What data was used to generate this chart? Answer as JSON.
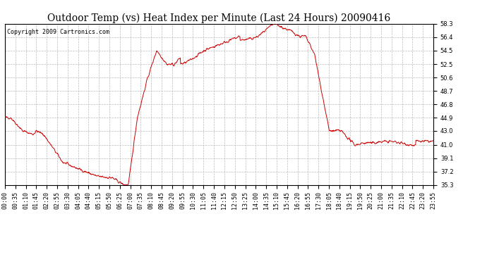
{
  "title": "Outdoor Temp (vs) Heat Index per Minute (Last 24 Hours) 20090416",
  "copyright_text": "Copyright 2009 Cartronics.com",
  "line_color": "#cc0000",
  "bg_color": "#ffffff",
  "plot_bg_color": "#ffffff",
  "grid_color": "#bbbbbb",
  "grid_style": "--",
  "yticks": [
    35.3,
    37.2,
    39.1,
    41.0,
    43.0,
    44.9,
    46.8,
    48.7,
    50.6,
    52.5,
    54.5,
    56.4,
    58.3
  ],
  "ymin": 35.3,
  "ymax": 58.3,
  "title_fontsize": 10,
  "copyright_fontsize": 6,
  "tick_fontsize": 6,
  "xtick_labels": [
    "00:00",
    "00:35",
    "01:10",
    "01:45",
    "02:20",
    "02:55",
    "03:30",
    "04:05",
    "04:40",
    "05:15",
    "05:50",
    "06:25",
    "07:00",
    "07:35",
    "08:10",
    "08:45",
    "09:20",
    "09:55",
    "10:30",
    "11:05",
    "11:40",
    "12:15",
    "12:50",
    "13:25",
    "14:00",
    "14:35",
    "15:10",
    "15:45",
    "16:20",
    "16:55",
    "17:30",
    "18:05",
    "18:40",
    "19:15",
    "19:50",
    "20:25",
    "21:00",
    "21:35",
    "22:10",
    "22:45",
    "23:20",
    "23:55"
  ]
}
